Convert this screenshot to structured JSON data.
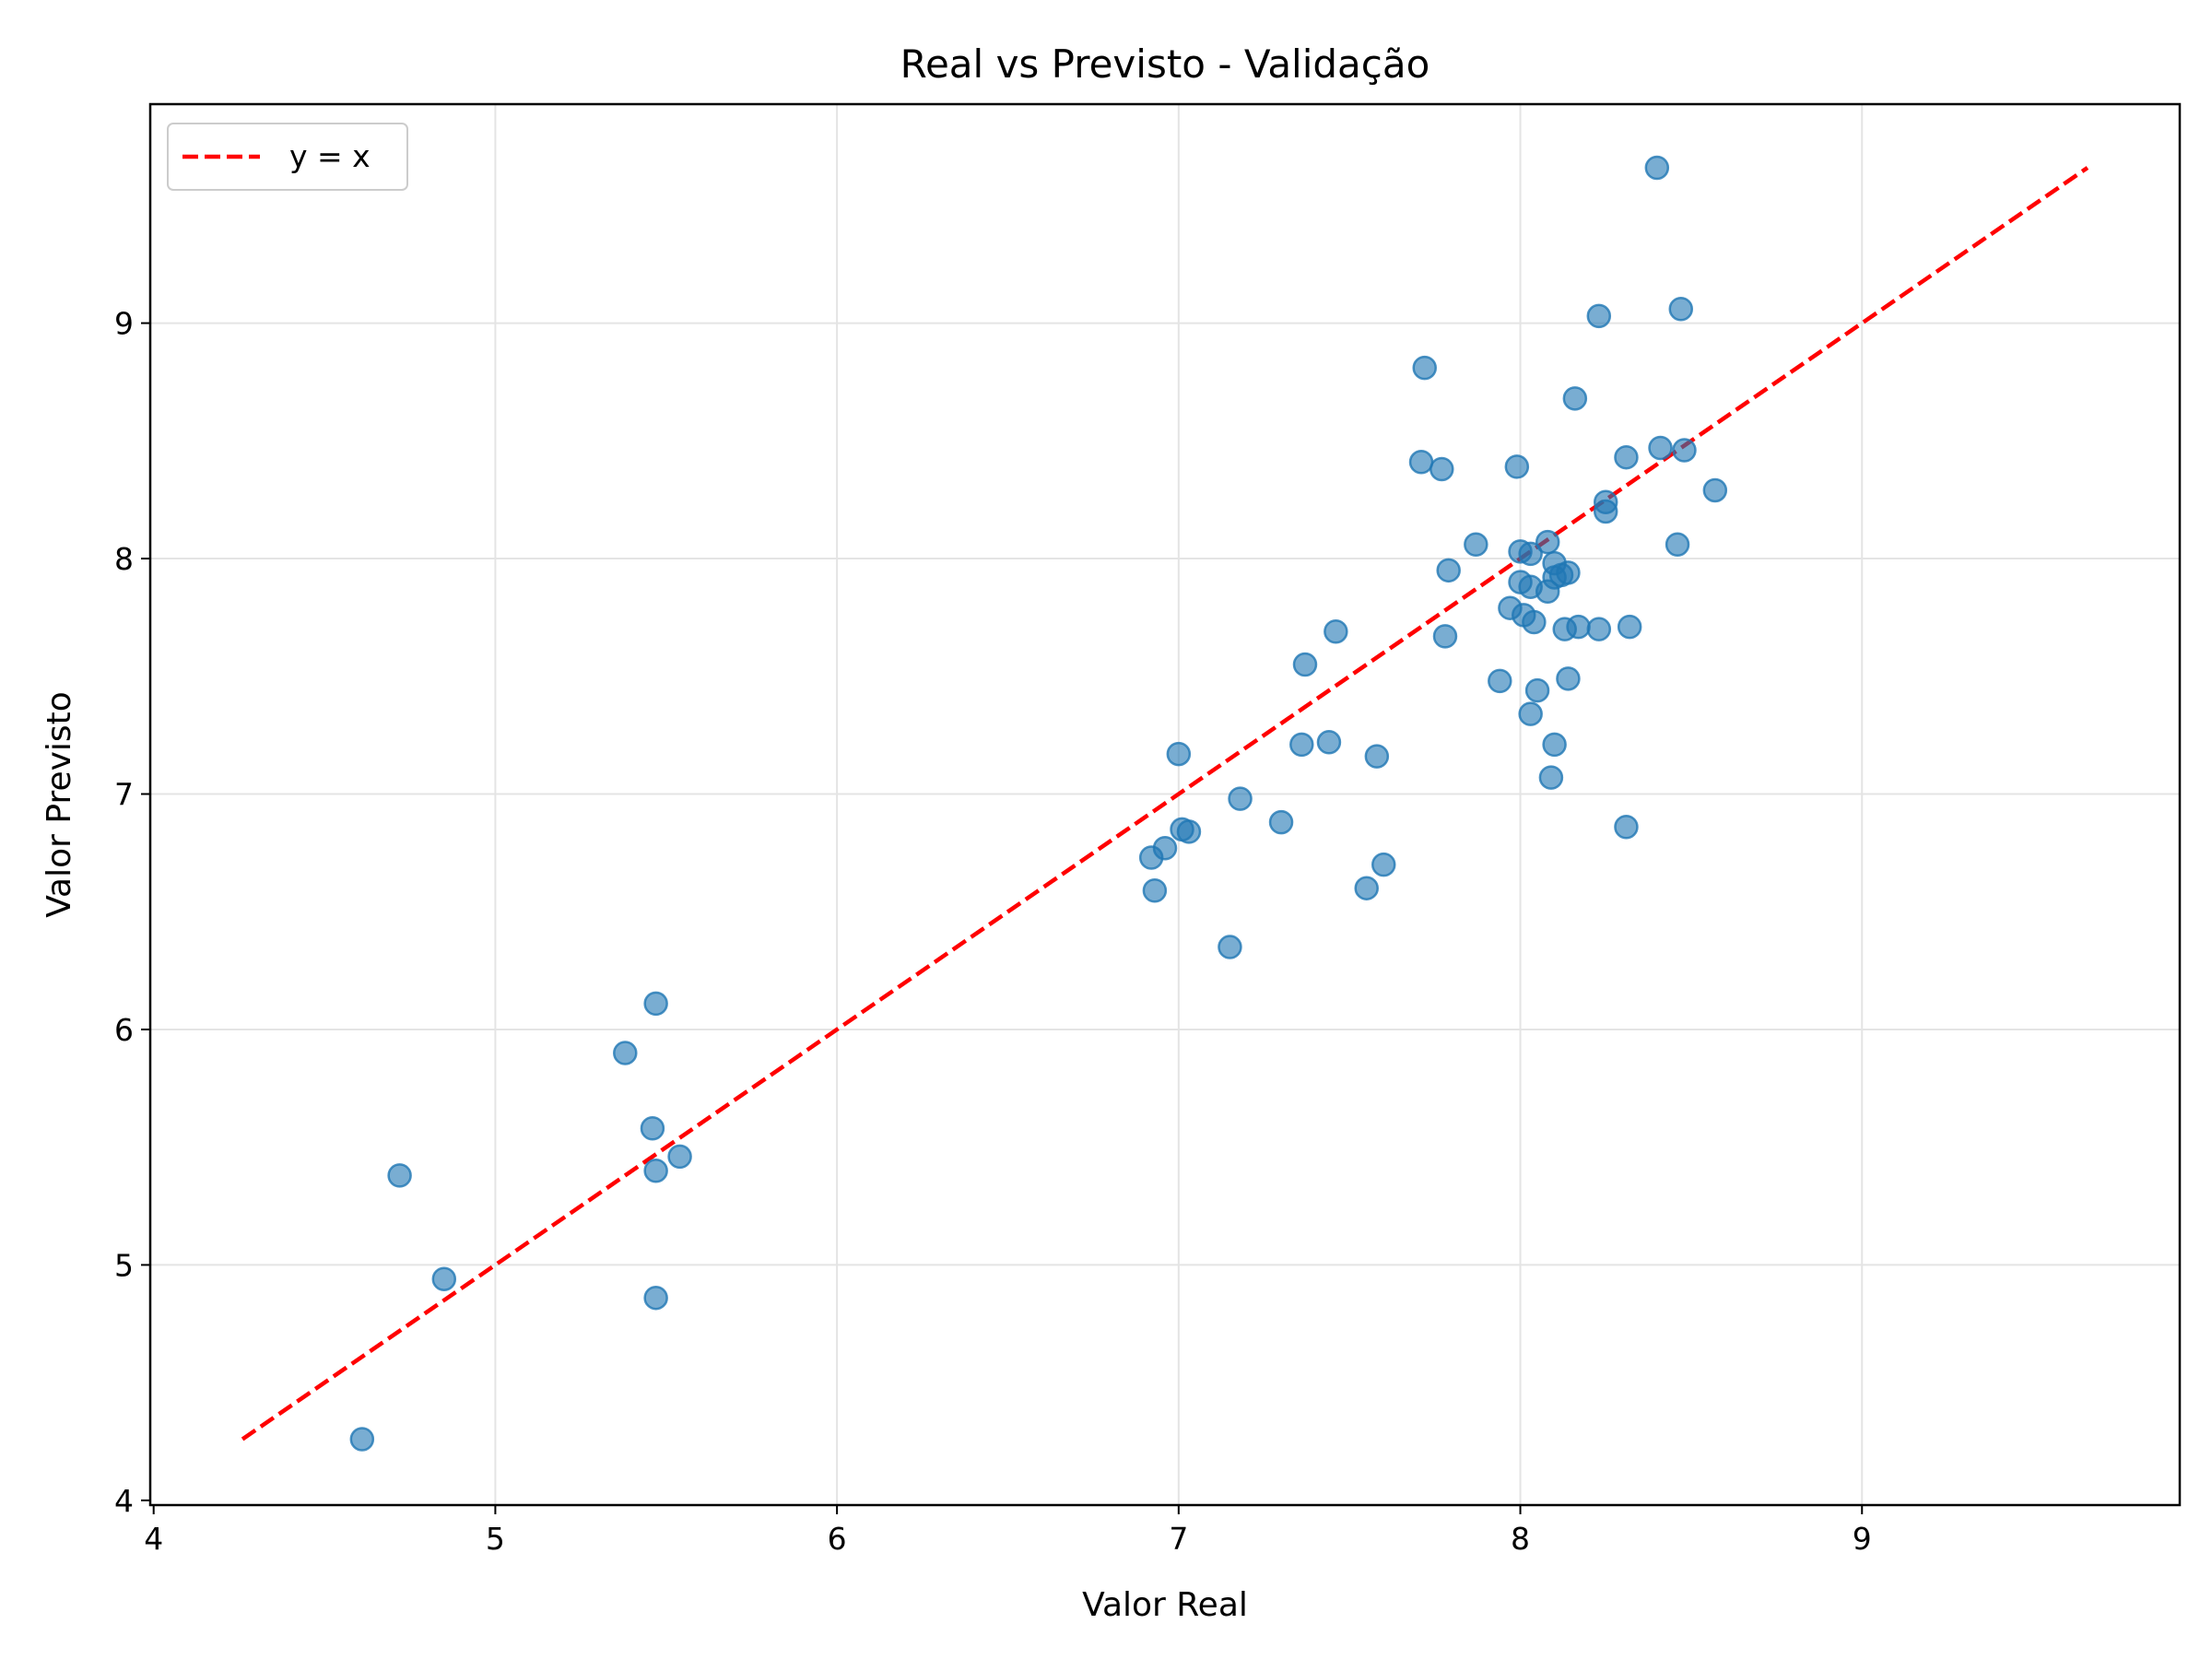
{
  "chart_data": {
    "type": "scatter",
    "title": "Real vs Previsto - Validação",
    "xlabel": "Valor Real",
    "ylabel": "Valor Previsto",
    "xlim": [
      3.99,
      9.93
    ],
    "ylim": [
      3.98,
      9.93
    ],
    "xticks": [
      "4",
      "5",
      "6",
      "7",
      "8",
      "9"
    ],
    "yticks": [
      "4",
      "5",
      "6",
      "7",
      "8",
      "9"
    ],
    "grid": true,
    "legend": {
      "position": "top-left",
      "entries": [
        {
          "label": "y = x",
          "color": "#ff0000",
          "style": "dashed"
        }
      ]
    },
    "reference_line": {
      "label": "y = x",
      "from": [
        4.26,
        4.26
      ],
      "to": [
        9.66,
        9.66
      ],
      "color": "#ff0000"
    },
    "series": [
      {
        "color": "#1f77b4",
        "points": [
          [
            4.61,
            4.26
          ],
          [
            4.72,
            5.38
          ],
          [
            4.85,
            4.94
          ],
          [
            5.38,
            5.9
          ],
          [
            5.46,
            5.58
          ],
          [
            5.47,
            6.11
          ],
          [
            5.47,
            5.4
          ],
          [
            5.47,
            4.86
          ],
          [
            5.54,
            5.46
          ],
          [
            6.92,
            6.73
          ],
          [
            6.93,
            6.59
          ],
          [
            6.96,
            6.77
          ],
          [
            7.0,
            7.17
          ],
          [
            7.01,
            6.85
          ],
          [
            7.03,
            6.84
          ],
          [
            7.15,
            6.35
          ],
          [
            7.18,
            6.98
          ],
          [
            7.3,
            6.88
          ],
          [
            7.36,
            7.21
          ],
          [
            7.37,
            7.55
          ],
          [
            7.44,
            7.22
          ],
          [
            7.46,
            7.69
          ],
          [
            7.55,
            6.6
          ],
          [
            7.58,
            7.16
          ],
          [
            7.6,
            6.7
          ],
          [
            7.71,
            8.41
          ],
          [
            7.72,
            8.81
          ],
          [
            7.77,
            8.38
          ],
          [
            7.78,
            7.67
          ],
          [
            7.79,
            7.95
          ],
          [
            7.87,
            8.06
          ],
          [
            7.94,
            7.48
          ],
          [
            7.97,
            7.79
          ],
          [
            7.99,
            8.39
          ],
          [
            8.0,
            8.03
          ],
          [
            8.0,
            7.9
          ],
          [
            8.01,
            7.76
          ],
          [
            8.03,
            7.88
          ],
          [
            8.03,
            8.02
          ],
          [
            8.03,
            7.34
          ],
          [
            8.04,
            7.73
          ],
          [
            8.05,
            7.44
          ],
          [
            8.08,
            8.07
          ],
          [
            8.08,
            7.86
          ],
          [
            8.09,
            7.07
          ],
          [
            8.1,
            7.21
          ],
          [
            8.1,
            7.98
          ],
          [
            8.1,
            7.92
          ],
          [
            8.12,
            7.93
          ],
          [
            8.13,
            7.7
          ],
          [
            8.14,
            7.94
          ],
          [
            8.14,
            7.49
          ],
          [
            8.16,
            8.68
          ],
          [
            8.17,
            7.71
          ],
          [
            8.23,
            9.03
          ],
          [
            8.23,
            7.7
          ],
          [
            8.25,
            8.24
          ],
          [
            8.25,
            8.2
          ],
          [
            8.31,
            8.43
          ],
          [
            8.31,
            6.86
          ],
          [
            8.32,
            7.71
          ],
          [
            8.4,
            9.66
          ],
          [
            8.41,
            8.47
          ],
          [
            8.46,
            8.06
          ],
          [
            8.47,
            9.06
          ],
          [
            8.48,
            8.46
          ],
          [
            8.57,
            8.29
          ]
        ]
      }
    ]
  }
}
